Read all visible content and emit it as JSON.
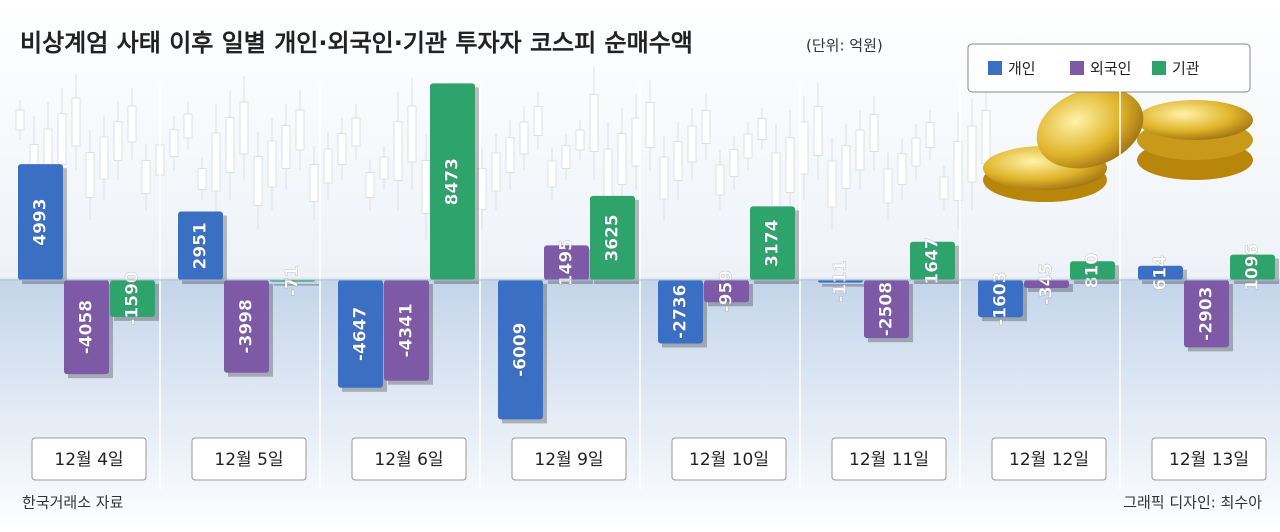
{
  "chart_data": {
    "type": "bar",
    "title": "비상계엄 사태 이후 일별 개인·외국인·기관 투자자 코스피 순매수액",
    "subtitle": "(단위: 억원)",
    "categories": [
      "12월 4일",
      "12월 5일",
      "12월 6일",
      "12월 9일",
      "12월 10일",
      "12월 11일",
      "12월 12일",
      "12월 13일"
    ],
    "series": [
      {
        "name": "개인",
        "color": "#3a6fc4",
        "values": [
          4993,
          2951,
          -4647,
          -6009,
          -2736,
          -111,
          -1603,
          614
        ]
      },
      {
        "name": "외국인",
        "color": "#7e5aa6",
        "values": [
          -4058,
          -3998,
          -4341,
          1495,
          -959,
          -2508,
          -345,
          -2903
        ]
      },
      {
        "name": "기관",
        "color": "#2ea36b",
        "values": [
          -1590,
          -71,
          8473,
          3625,
          3174,
          1647,
          810,
          1096
        ]
      }
    ],
    "source": "한국거래소 자료",
    "credit": "그래픽 디자인: 최수아"
  }
}
